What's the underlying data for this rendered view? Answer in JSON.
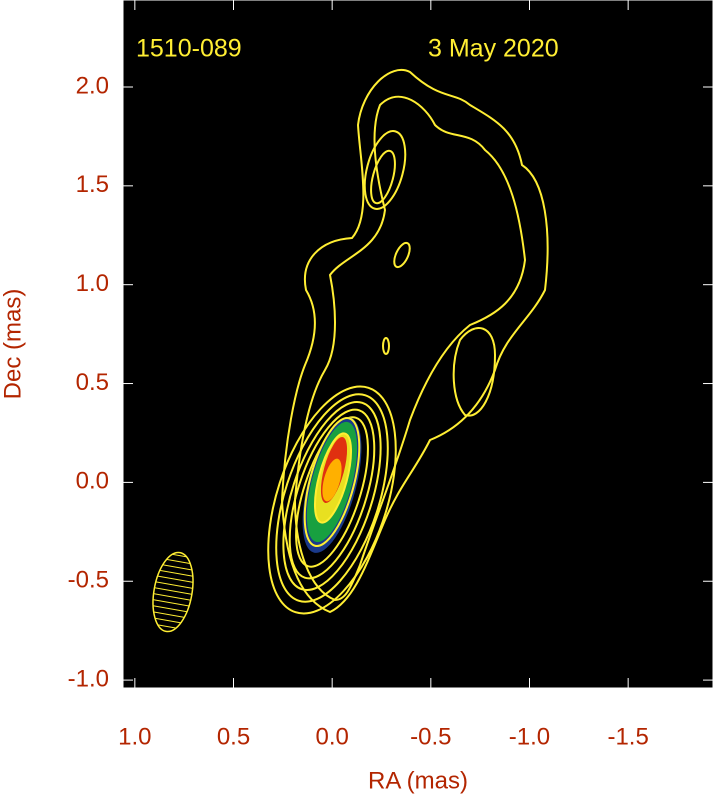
{
  "chart_data": {
    "type": "contour",
    "annotations": [
      "1510-089",
      "3 May 2020"
    ],
    "xlabel": "RA (mas)",
    "ylabel": "Dec (mas)",
    "xlim": [
      1.06,
      -1.93
    ],
    "ylim": [
      -1.04,
      2.44
    ],
    "xticks": [
      {
        "value": 1,
        "label": "1.0"
      },
      0.5,
      {
        "value": 0,
        "label": "0.0"
      },
      -0.5,
      {
        "value": -1,
        "label": "-1.0"
      },
      -1.5
    ],
    "yticks": [
      {
        "value": 2,
        "label": "2.0"
      },
      1.5,
      {
        "value": 1,
        "label": "1.0"
      },
      0.5,
      {
        "value": 0,
        "label": "0.0"
      },
      -0.5,
      {
        "value": -1,
        "label": "-1.0"
      }
    ],
    "color": "#ffee33"
  }
}
